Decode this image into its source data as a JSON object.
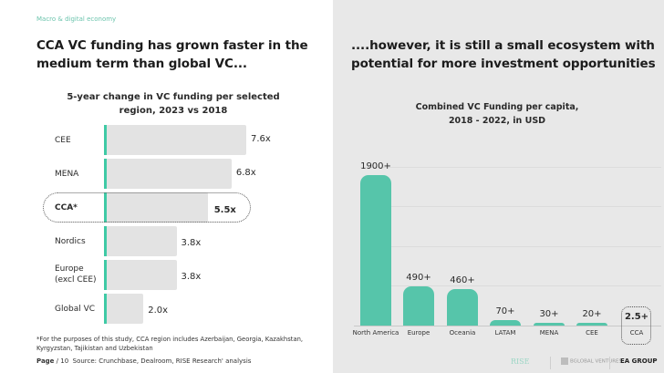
{
  "section_tag": "Macro & digital economy",
  "left": {
    "headline": "CCA VC funding has grown faster in the medium term than global VC...",
    "footnote": "*For the purposes of this study, CCA region includes Azerbaijan, Georgia, Kazakhstan, Kyrgyzstan, Tajikistan and Uzbekistan",
    "page_label": "Page",
    "page_number": "/ 10",
    "source": "Source: Crunchbase, Dealroom, RISE Research' analysis"
  },
  "right": {
    "headline": "....however, it is still a small ecosystem with potential for more investment opportunities"
  },
  "logos": {
    "rise": "RISE",
    "rise_sub": "research",
    "bglobal": "BGLOBAL VENTURES",
    "ea": "EA GROUP"
  },
  "colors": {
    "accent": "#56c5aa",
    "bar_gray": "#e3e3e3",
    "axis_teal": "#3fcaa5"
  },
  "chart_data": [
    {
      "type": "bar",
      "orientation": "horizontal",
      "title": "5-year change in VC funding per selected region, 2023 vs 2018",
      "categories": [
        "CEE",
        "MENA",
        "CCA*",
        "Nordics",
        "Europe (excl CEE)",
        "Global VC"
      ],
      "values": [
        7.6,
        6.8,
        5.5,
        3.8,
        3.8,
        2.0
      ],
      "labels": [
        "7.6x",
        "6.8x",
        "5.5x",
        "3.8x",
        "3.8x",
        "2.0x"
      ],
      "highlight": "CCA*",
      "xlabel": "",
      "ylabel": "",
      "xlim": [
        0,
        7.6
      ],
      "grid": false
    },
    {
      "type": "bar",
      "orientation": "vertical",
      "title": "Combined VC Funding per capita, 2018 - 2022, in USD",
      "categories": [
        "North America",
        "Europe",
        "Oceania",
        "LATAM",
        "MENA",
        "CEE",
        "CCA"
      ],
      "values": [
        1900,
        490,
        460,
        70,
        30,
        20,
        2.5
      ],
      "labels": [
        "1900+",
        "490+",
        "460+",
        "70+",
        "30+",
        "20+",
        "2.5+"
      ],
      "highlight": "CCA",
      "xlabel": "",
      "ylabel": "",
      "ylim": [
        0,
        1900
      ],
      "grid": true
    }
  ]
}
